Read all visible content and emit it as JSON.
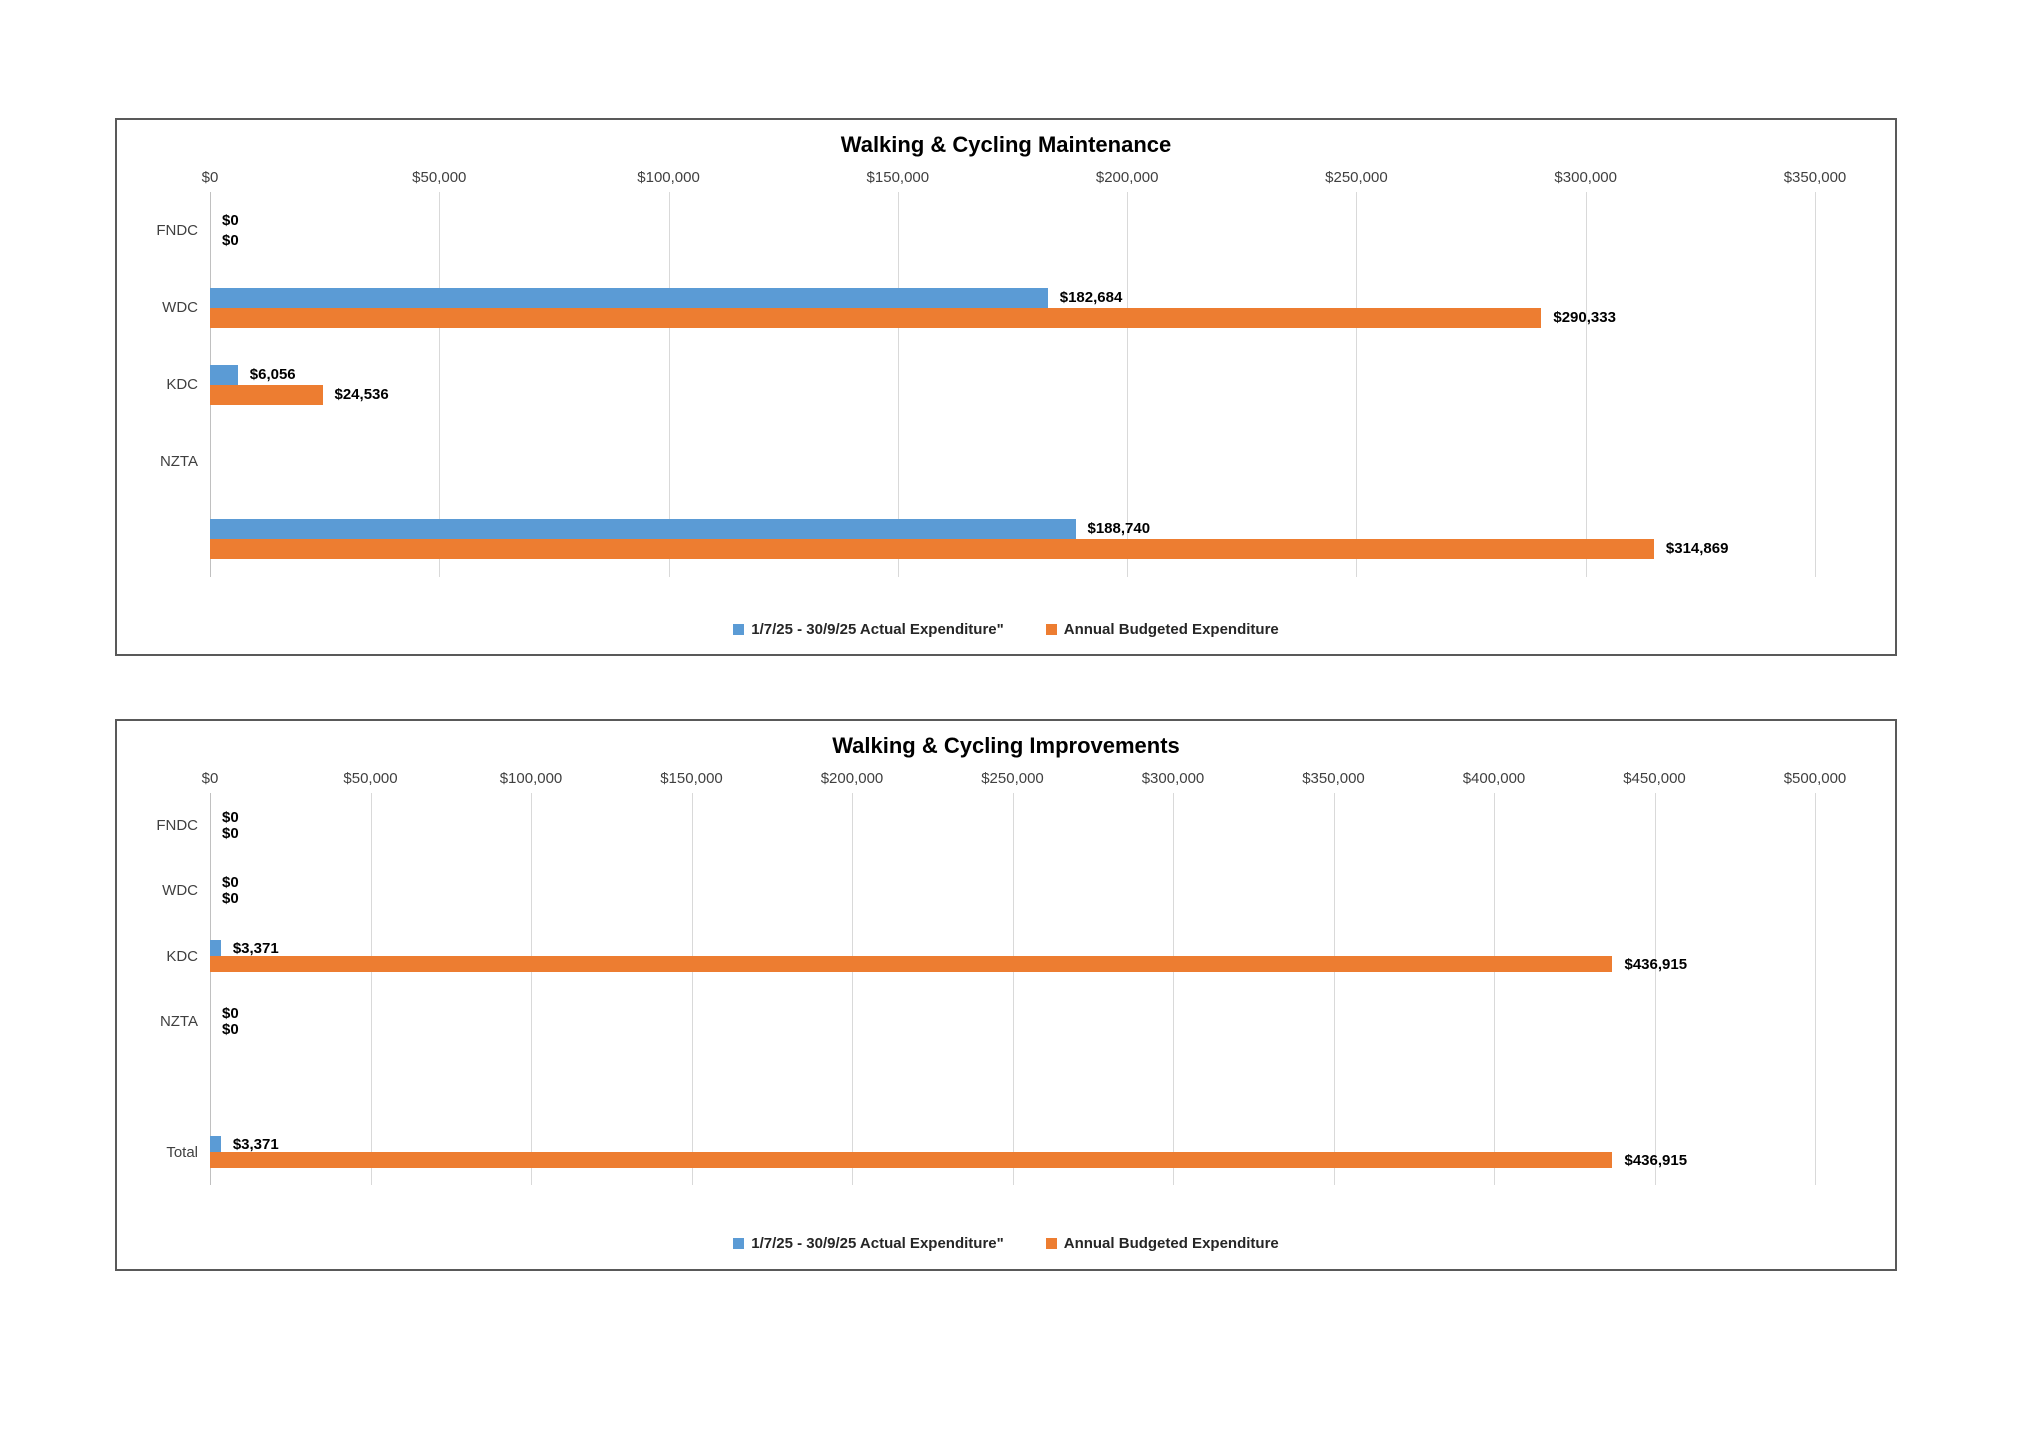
{
  "colors": {
    "actual_series": "#5B9BD5",
    "budget_series": "#ED7D31",
    "gridline": "#D9D9D9",
    "panel_border": "#595959",
    "label_text": "#000000"
  },
  "legend": {
    "actual_label": "1/7/25 - 30/9/25 Actual Expenditure\"",
    "budget_label": "Annual Budgeted Expenditure"
  },
  "chart_data": [
    {
      "type": "bar",
      "orientation": "horizontal",
      "title": "Walking & Cycling Maintenance",
      "xlim": [
        0,
        350000
      ],
      "ticks": [
        "$0",
        "$50,000",
        "$100,000",
        "$150,000",
        "$200,000",
        "$250,000",
        "$300,000",
        "$350,000"
      ],
      "grid": true,
      "legend_position": "bottom",
      "categories": [
        "FNDC",
        "WDC",
        "KDC",
        "NZTA",
        ""
      ],
      "series": [
        {
          "name": "1/7/25 - 30/9/25 Actual Expenditure\"",
          "values": [
            0,
            182684,
            6056,
            null,
            188740
          ],
          "labels": [
            "$0",
            "$182,684",
            "$6,056",
            null,
            "$188,740"
          ]
        },
        {
          "name": "Annual Budgeted Expenditure",
          "values": [
            0,
            290333,
            24536,
            null,
            314869
          ],
          "labels": [
            "$0",
            "$290,333",
            "$24,536",
            null,
            "$314,869"
          ]
        }
      ]
    },
    {
      "type": "bar",
      "orientation": "horizontal",
      "title": "Walking & Cycling Improvements",
      "xlim": [
        0,
        500000
      ],
      "ticks": [
        "$0",
        "$50,000",
        "$100,000",
        "$150,000",
        "$200,000",
        "$250,000",
        "$300,000",
        "$350,000",
        "$400,000",
        "$450,000",
        "$500,000"
      ],
      "grid": true,
      "legend_position": "bottom",
      "categories": [
        "FNDC",
        "WDC",
        "KDC",
        "NZTA",
        "",
        "Total"
      ],
      "series": [
        {
          "name": "1/7/25 - 30/9/25 Actual Expenditure\"",
          "values": [
            0,
            0,
            3371,
            0,
            null,
            3371
          ],
          "labels": [
            "$0",
            "$0",
            "$3,371",
            "$0",
            null,
            "$3,371"
          ]
        },
        {
          "name": "Annual Budgeted Expenditure",
          "values": [
            0,
            0,
            436915,
            0,
            null,
            436915
          ],
          "labels": [
            "$0",
            "$0",
            "$436,915",
            "$0",
            null,
            "$436,915"
          ]
        }
      ]
    }
  ]
}
